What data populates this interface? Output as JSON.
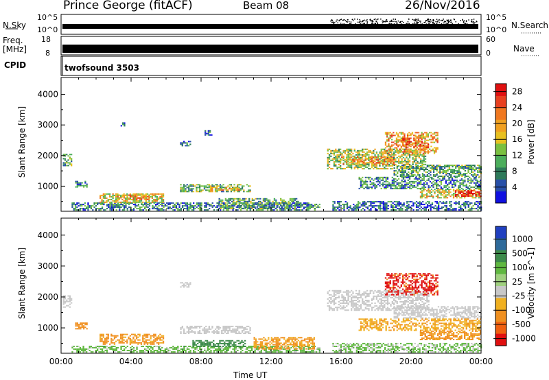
{
  "header": {
    "station": "Prince George (fitACF)",
    "beam": "Beam 08",
    "date": "26/Nov/2016"
  },
  "strip_labels": {
    "nsky": "N.Sky",
    "nsky_scale_top": "10^5",
    "nsky_scale_bottom": "10^0",
    "nsearch": "N.Search",
    "nsearch_top": "10^5",
    "nsearch_bottom": "10^0",
    "freq": "Freq.",
    "freq_unit": "[MHz]",
    "freq_top": "18",
    "freq_bottom": "8",
    "nave": "Nave",
    "nave_top": "60",
    "nave_bottom": "0",
    "cpid": "CPID",
    "cpid_value": "twofsound 3503"
  },
  "colors": {
    "power_scale": [
      "#1010e0",
      "#2850a8",
      "#2e7a5a",
      "#4cae5c",
      "#7ac040",
      "#e8c020",
      "#f0a020",
      "#f07820",
      "#e84020",
      "#e01010"
    ],
    "velocity_scale": [
      "#2040c0",
      "#2e6a9a",
      "#3c8a4a",
      "#60b840",
      "#a0d080",
      "#c8c8c8",
      "#f0b020",
      "#f09020",
      "#f06010",
      "#e01010"
    ]
  },
  "chart_data": [
    {
      "type": "heatmap",
      "title": "",
      "xlabel": "",
      "ylabel": "Slant Range [km]",
      "x_ticks": [
        "00:00",
        "04:00",
        "08:00",
        "12:00",
        "16:00",
        "20:00",
        "00:00"
      ],
      "y_ticks": [
        "1000",
        "2000",
        "3000",
        "4000"
      ],
      "ylim": [
        180,
        4550
      ],
      "xlim_hours": [
        0,
        24
      ],
      "colorbar_label": "Power [dB]",
      "colorbar_ticks": [
        "4",
        "8",
        "12",
        "16",
        "20",
        "24",
        "28"
      ],
      "colorbar_range": [
        0,
        30
      ],
      "regions": [
        {
          "t0": 0.1,
          "t1": 0.6,
          "r0": 1650,
          "r1": 2050,
          "v": 10
        },
        {
          "t0": 0.8,
          "t1": 1.5,
          "r0": 950,
          "r1": 1150,
          "v": 6
        },
        {
          "t0": 0.6,
          "t1": 14.8,
          "r0": 200,
          "r1": 450,
          "v": 8
        },
        {
          "t0": 2.2,
          "t1": 5.8,
          "r0": 450,
          "r1": 750,
          "v": 16
        },
        {
          "t0": 3.2,
          "t1": 5.0,
          "r0": 550,
          "r1": 700,
          "v": 20
        },
        {
          "t0": 6.8,
          "t1": 10.8,
          "r0": 800,
          "r1": 1050,
          "v": 12
        },
        {
          "t0": 8.5,
          "t1": 10.2,
          "r0": 850,
          "r1": 950,
          "v": 18
        },
        {
          "t0": 6.8,
          "t1": 7.4,
          "r0": 2300,
          "r1": 2450,
          "v": 6
        },
        {
          "t0": 8.2,
          "t1": 8.6,
          "r0": 2650,
          "r1": 2800,
          "v": 6
        },
        {
          "t0": 3.4,
          "t1": 3.6,
          "r0": 2950,
          "r1": 3050,
          "v": 4
        },
        {
          "t0": 9.0,
          "t1": 13.5,
          "r0": 250,
          "r1": 600,
          "v": 10
        },
        {
          "t0": 15.2,
          "t1": 20.8,
          "r0": 1550,
          "r1": 2200,
          "v": 14
        },
        {
          "t0": 16.0,
          "t1": 19.0,
          "r0": 1700,
          "r1": 1950,
          "v": 20
        },
        {
          "t0": 18.5,
          "t1": 21.5,
          "r0": 2050,
          "r1": 2750,
          "v": 20
        },
        {
          "t0": 19.5,
          "t1": 21.0,
          "r0": 2250,
          "r1": 2550,
          "v": 24
        },
        {
          "t0": 19.0,
          "t1": 24.0,
          "r0": 1300,
          "r1": 1700,
          "v": 10
        },
        {
          "t0": 17.0,
          "t1": 24.0,
          "r0": 900,
          "r1": 1300,
          "v": 8
        },
        {
          "t0": 20.5,
          "t1": 24.0,
          "r0": 600,
          "r1": 900,
          "v": 16
        },
        {
          "t0": 22.5,
          "t1": 24.0,
          "r0": 650,
          "r1": 850,
          "v": 28
        },
        {
          "t0": 15.5,
          "t1": 24.0,
          "r0": 200,
          "r1": 500,
          "v": 6
        }
      ]
    },
    {
      "type": "heatmap",
      "title": "",
      "xlabel": "Time UT",
      "ylabel": "Slant Range [km]",
      "x_ticks": [
        "00:00",
        "04:00",
        "08:00",
        "12:00",
        "16:00",
        "20:00",
        "00:00"
      ],
      "y_ticks": [
        "1000",
        "2000",
        "3000",
        "4000"
      ],
      "ylim": [
        180,
        4550
      ],
      "xlim_hours": [
        0,
        24
      ],
      "colorbar_label": "Velocity [m s^-1]",
      "colorbar_ticks": [
        "1000",
        "500",
        "100",
        "25",
        "-25",
        "-100",
        "-500",
        "-1000"
      ],
      "regions": [
        {
          "t0": 0.1,
          "t1": 0.6,
          "r0": 1650,
          "r1": 2050,
          "v": 0
        },
        {
          "t0": 0.8,
          "t1": 1.5,
          "r0": 950,
          "r1": 1150,
          "v": -200
        },
        {
          "t0": 2.2,
          "t1": 5.8,
          "r0": 450,
          "r1": 800,
          "v": -150
        },
        {
          "t0": 0.6,
          "t1": 14.8,
          "r0": 200,
          "r1": 400,
          "v": 60
        },
        {
          "t0": 6.8,
          "t1": 10.8,
          "r0": 800,
          "r1": 1050,
          "v": 0
        },
        {
          "t0": 7.5,
          "t1": 10.5,
          "r0": 380,
          "r1": 600,
          "v": 200
        },
        {
          "t0": 11.0,
          "t1": 14.5,
          "r0": 300,
          "r1": 700,
          "v": -120
        },
        {
          "t0": 6.8,
          "t1": 7.4,
          "r0": 2300,
          "r1": 2450,
          "v": 0
        },
        {
          "t0": 15.2,
          "t1": 21.0,
          "r0": 1550,
          "r1": 2200,
          "v": 0
        },
        {
          "t0": 18.5,
          "t1": 21.5,
          "r0": 2050,
          "r1": 2750,
          "v": -700
        },
        {
          "t0": 19.0,
          "t1": 24.0,
          "r0": 1300,
          "r1": 1700,
          "v": 0
        },
        {
          "t0": 17.0,
          "t1": 24.0,
          "r0": 900,
          "r1": 1300,
          "v": -80
        },
        {
          "t0": 20.5,
          "t1": 24.0,
          "r0": 600,
          "r1": 900,
          "v": -150
        },
        {
          "t0": 15.5,
          "t1": 24.0,
          "r0": 200,
          "r1": 500,
          "v": 40
        }
      ]
    }
  ]
}
